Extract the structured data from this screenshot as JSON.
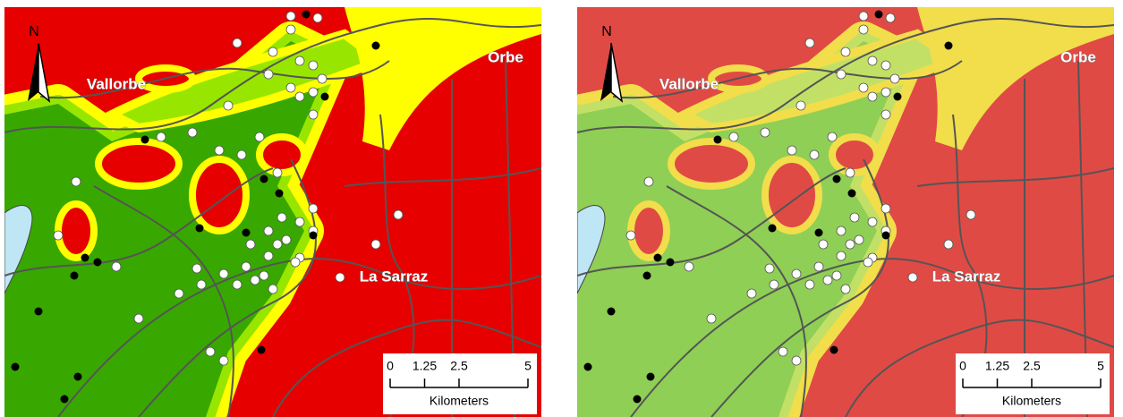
{
  "panels": [
    {
      "north": "N",
      "places": [
        "Vallorbe",
        "Orbe",
        "La Sarraz"
      ],
      "scale": {
        "ticks": [
          0,
          1.25,
          2.5,
          5
        ],
        "unit": "Kilometers"
      }
    },
    {
      "north": "N",
      "places": [
        "Vallorbe",
        "Orbe",
        "La Sarraz"
      ],
      "scale": {
        "ticks": [
          0,
          1.25,
          2.5,
          5
        ],
        "unit": "Kilometers"
      }
    }
  ]
}
